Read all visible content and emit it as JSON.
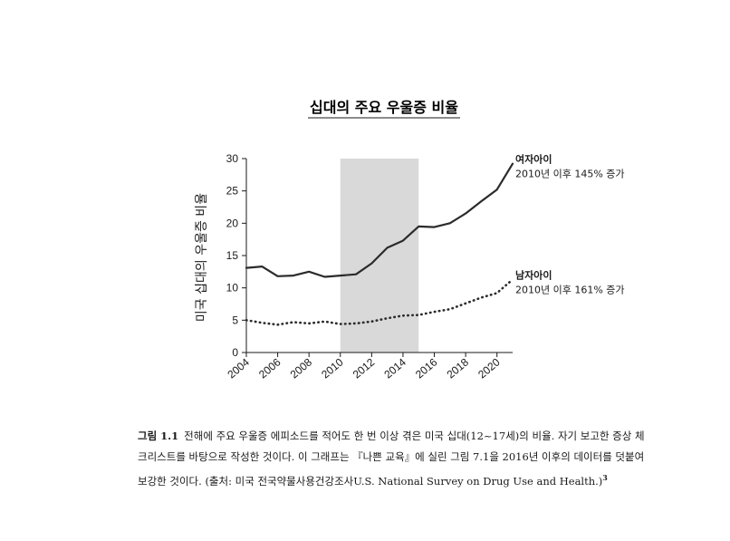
{
  "chart_data": {
    "type": "line",
    "title": "십대의 주요 우울증 비율",
    "ylabel": "미국 십대의 우울증 비율",
    "xlabel": "",
    "x": [
      2004,
      2005,
      2006,
      2007,
      2008,
      2009,
      2010,
      2011,
      2012,
      2013,
      2014,
      2015,
      2016,
      2017,
      2018,
      2019,
      2020,
      2021
    ],
    "x_ticks": [
      "2004",
      "2006",
      "2008",
      "2010",
      "2012",
      "2014",
      "2016",
      "2018",
      "2020"
    ],
    "y_ticks": [
      "0",
      "5",
      "10",
      "15",
      "20",
      "25",
      "30"
    ],
    "ylim": [
      0,
      30
    ],
    "xlim": [
      2004,
      2021
    ],
    "shaded_region": {
      "x_start": 2010,
      "x_end": 2015,
      "color": "#d9d9d9"
    },
    "grid": false,
    "series": [
      {
        "name": "여자아이",
        "style": "solid",
        "color": "#2b2b2b",
        "values": [
          13.1,
          13.3,
          11.8,
          11.9,
          12.5,
          11.7,
          11.9,
          12.1,
          13.8,
          16.2,
          17.3,
          19.5,
          19.4,
          20.0,
          21.5,
          23.4,
          25.2,
          29.2
        ],
        "annotation_title": "여자아이",
        "annotation_sub": "2010년 이후 145% 증가"
      },
      {
        "name": "남자아이",
        "style": "dotted",
        "color": "#2b2b2b",
        "values": [
          5.0,
          4.6,
          4.3,
          4.7,
          4.5,
          4.8,
          4.4,
          4.5,
          4.8,
          5.3,
          5.7,
          5.8,
          6.3,
          6.7,
          7.6,
          8.5,
          9.2,
          11.3
        ],
        "annotation_title": "남자아이",
        "annotation_sub": "2010년 이후 161% 증가"
      }
    ]
  },
  "caption": {
    "lead": "그림 1.1",
    "text": "전해에 주요 우울증 에피소드를 적어도 한 번 이상 겪은 미국 십대(12~17세)의 비율. 자기 보고한 증상 체크리스트를 바탕으로 작성한 것이다. 이 그래프는 『나쁜 교육』에 실린 그림 7.1을 2016년 이후의 데이터를 덧붙여 보강한 것이다. (출처: 미국 전국약물사용건강조사U.S. National Survey on Drug Use and Health.)",
    "footnote": "3"
  }
}
